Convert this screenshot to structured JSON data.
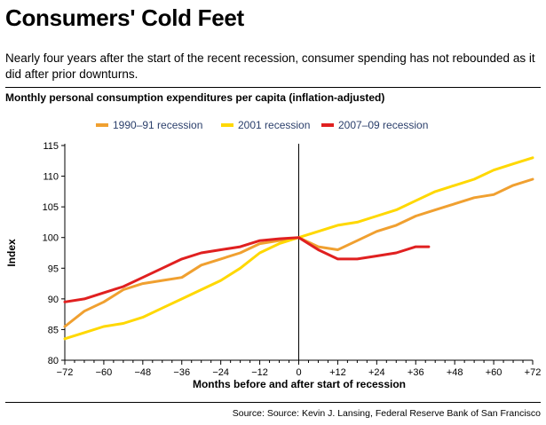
{
  "headline": "Consumers' Cold Feet",
  "dek": "Nearly four years after the start of the recent recession, consumer spending has not rebounded as it did after prior downturns.",
  "source": "Source: Source: Kevin J. Lansing, Federal Reserve Bank of San Francisco",
  "colors": {
    "s1": "#f0a030",
    "s2": "#ffd800",
    "s3": "#e02020",
    "axis": "#000000",
    "grid": "#cccccc"
  },
  "chart_data": {
    "type": "line",
    "title": "Monthly personal consumption expenditures per capita (inflation-adjusted)",
    "xlabel": "Months before and after start of recession",
    "ylabel": "Index",
    "xlim": [
      -72,
      72
    ],
    "ylim": [
      80,
      115
    ],
    "xticks": [
      -72,
      -60,
      -48,
      -36,
      -24,
      -12,
      0,
      12,
      24,
      36,
      48,
      60,
      72
    ],
    "xtick_labels": [
      "−72",
      "−60",
      "−48",
      "−36",
      "−24",
      "−12",
      "0",
      "+12",
      "+24",
      "+36",
      "+48",
      "+60",
      "+72"
    ],
    "yticks": [
      80,
      85,
      90,
      95,
      100,
      105,
      110,
      115
    ],
    "grid": "none",
    "legend": "top-center",
    "series": [
      {
        "name": "1990–91 recession",
        "color": "#f0a030",
        "x": [
          -72,
          -66,
          -60,
          -54,
          -48,
          -42,
          -36,
          -30,
          -24,
          -18,
          -12,
          -6,
          0,
          6,
          12,
          18,
          24,
          30,
          36,
          42,
          48,
          54,
          60,
          66,
          72
        ],
        "y": [
          85.5,
          88,
          89.5,
          91.5,
          92.5,
          93,
          93.5,
          95.5,
          96.5,
          97.5,
          99,
          99.5,
          100,
          98.5,
          98,
          99.5,
          101,
          102,
          103.5,
          104.5,
          105.5,
          106.5,
          107,
          108.5,
          109.5
        ]
      },
      {
        "name": "2001 recession",
        "color": "#ffd800",
        "x": [
          -72,
          -66,
          -60,
          -54,
          -48,
          -42,
          -36,
          -30,
          -24,
          -18,
          -12,
          -6,
          0,
          6,
          12,
          18,
          24,
          30,
          36,
          42,
          48,
          54,
          60,
          66,
          72
        ],
        "y": [
          83.5,
          84.5,
          85.5,
          86,
          87,
          88.5,
          90,
          91.5,
          93,
          95,
          97.5,
          99,
          100,
          101,
          102,
          102.5,
          103.5,
          104.5,
          106,
          107.5,
          108.5,
          109.5,
          111,
          112,
          113
        ]
      },
      {
        "name": "2007–09 recession",
        "color": "#e02020",
        "x": [
          -72,
          -66,
          -60,
          -54,
          -48,
          -42,
          -36,
          -30,
          -24,
          -18,
          -12,
          -6,
          0,
          6,
          12,
          18,
          24,
          30,
          36,
          40
        ],
        "y": [
          89.5,
          90,
          91,
          92,
          93.5,
          95,
          96.5,
          97.5,
          98,
          98.5,
          99.5,
          99.8,
          100,
          98,
          96.5,
          96.5,
          97,
          97.5,
          98.5,
          98.5
        ]
      }
    ]
  }
}
